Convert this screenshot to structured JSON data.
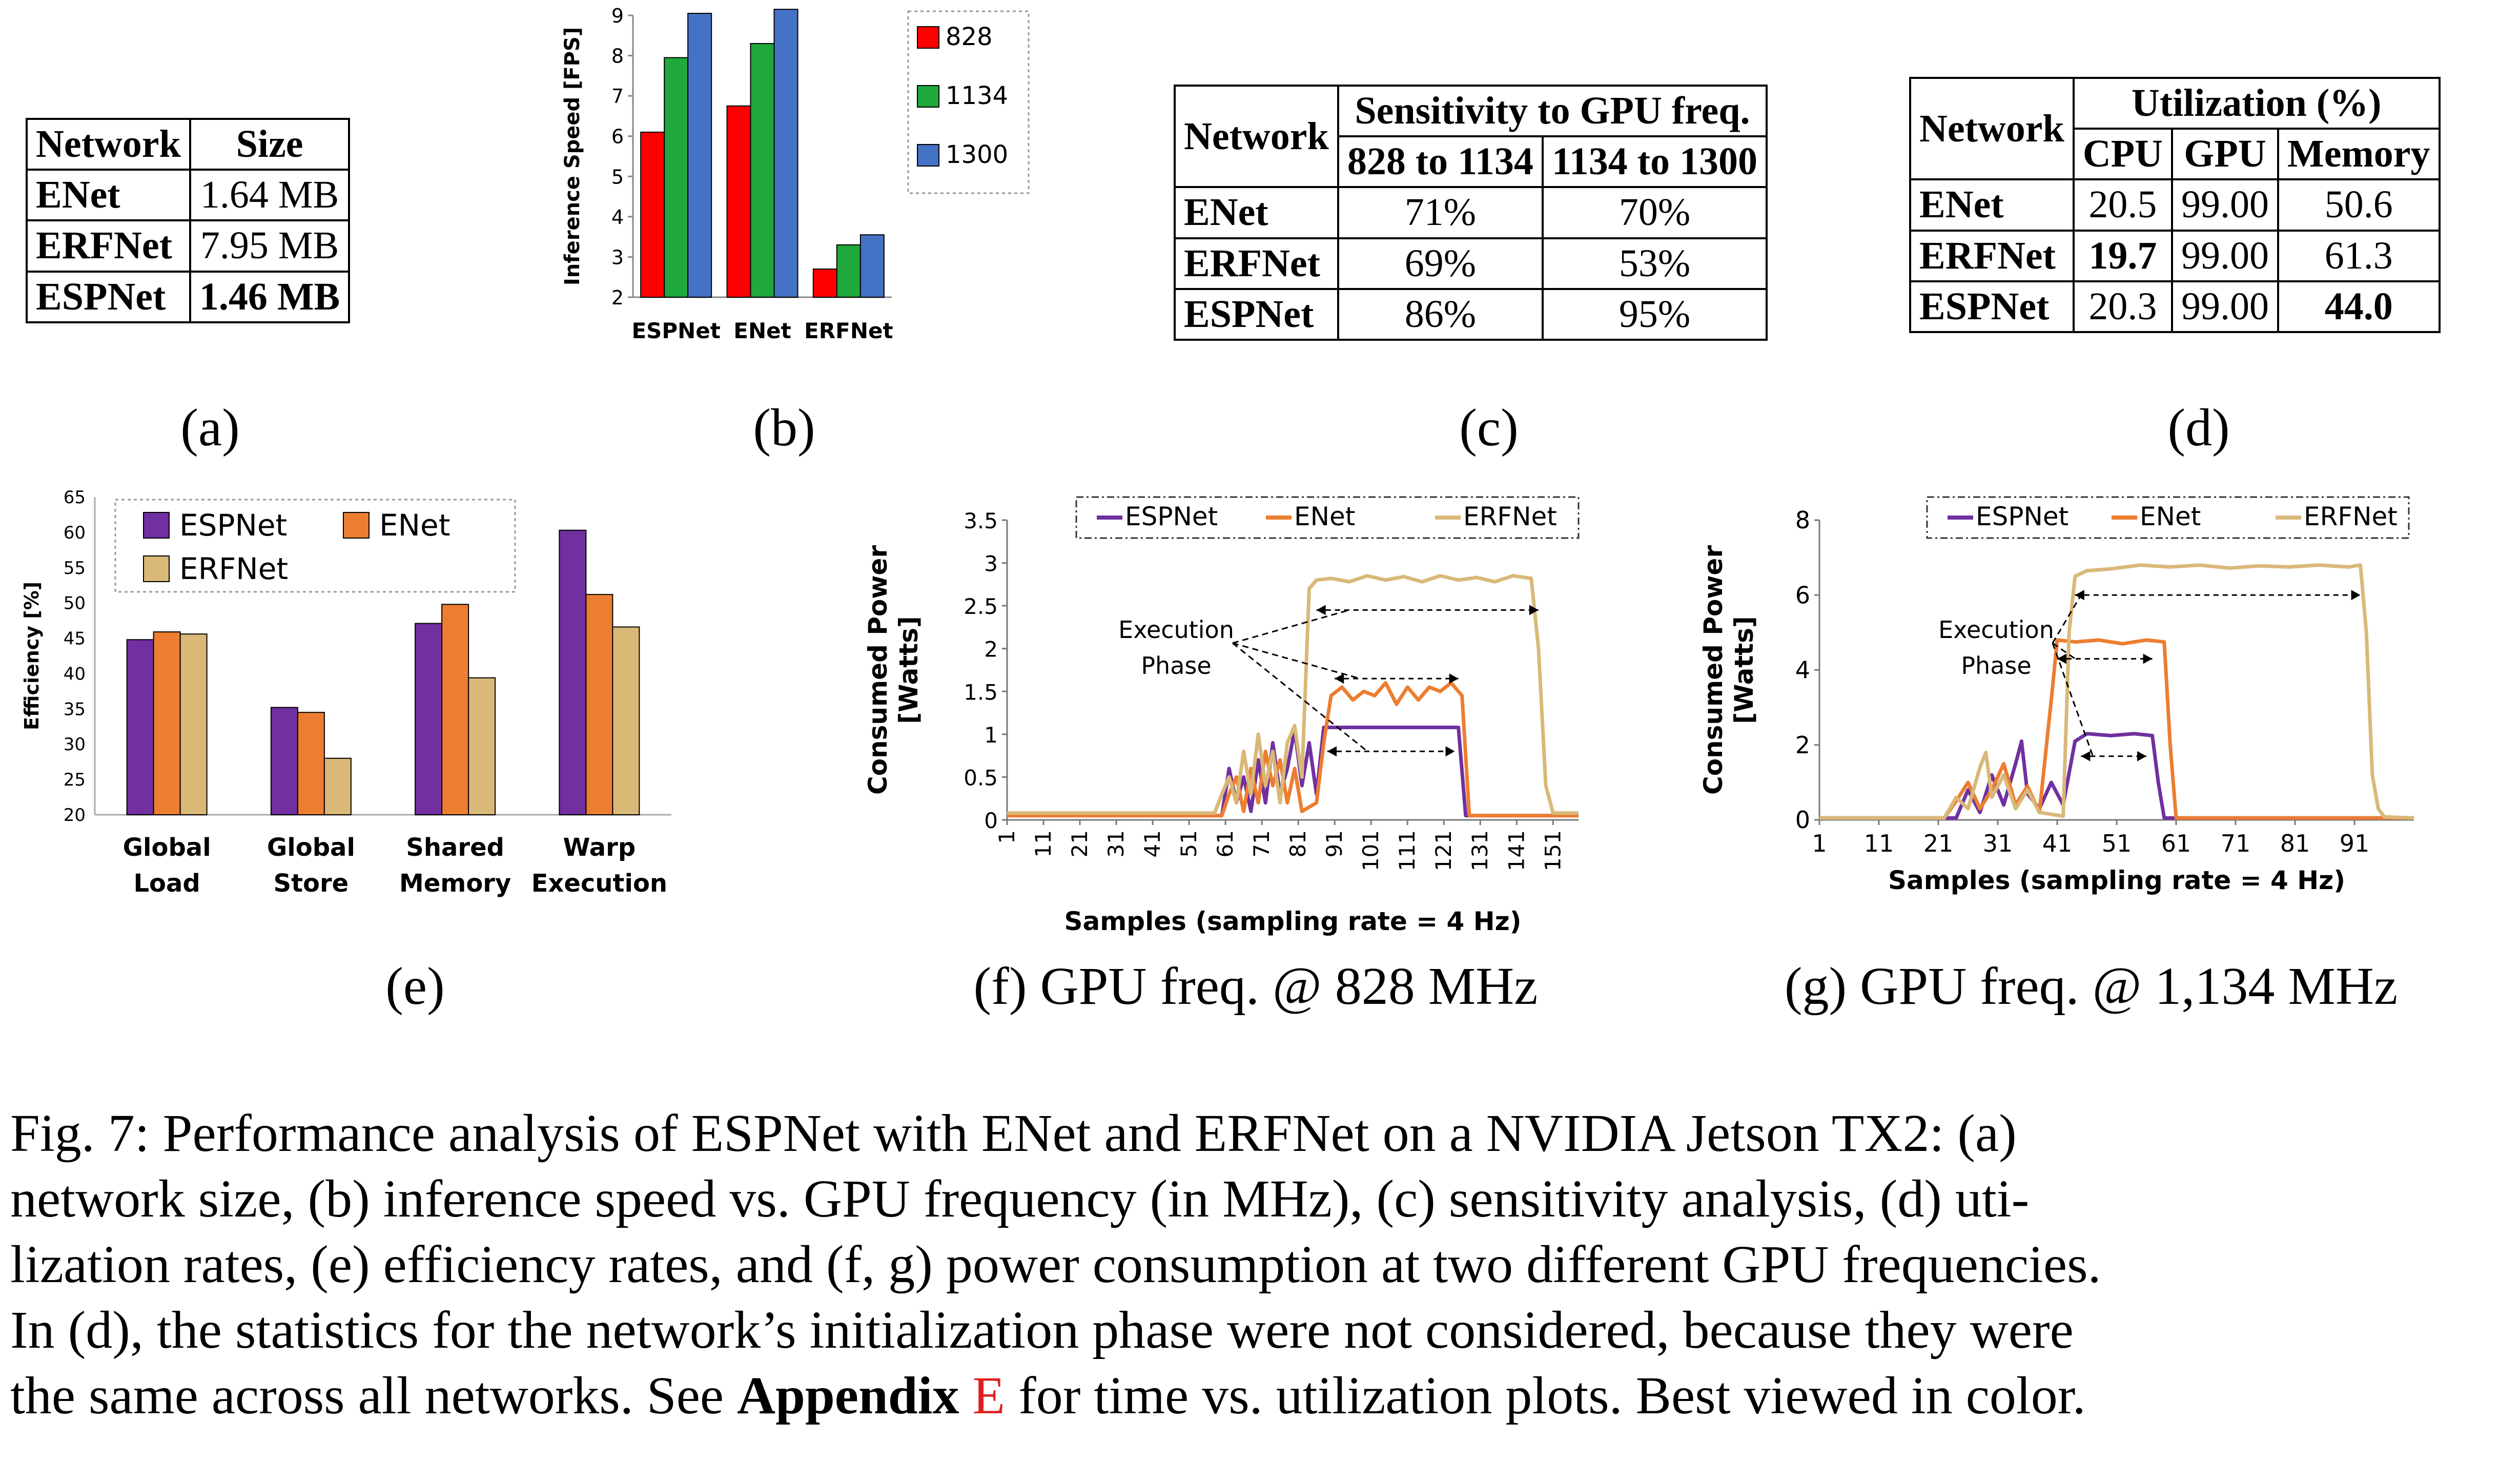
{
  "table_a": {
    "headers": [
      "Network",
      "Size"
    ],
    "rows": [
      [
        "ENet",
        "1.64 MB"
      ],
      [
        "ERFNet",
        "7.95 MB"
      ],
      [
        "ESPNet",
        "1.46 MB"
      ]
    ]
  },
  "table_c": {
    "h_network": "Network",
    "h_group": "Sensitivity to GPU freq.",
    "h_sub1": "828 to 1134",
    "h_sub2": "1134 to 1300",
    "rows": [
      [
        "ENet",
        "71%",
        "70%"
      ],
      [
        "ERFNet",
        "69%",
        "53%"
      ],
      [
        "ESPNet",
        "86%",
        "95%"
      ]
    ]
  },
  "table_d": {
    "h_network": "Network",
    "h_group": "Utilization (%)",
    "h_cpu": "CPU",
    "h_gpu": "GPU",
    "h_mem": "Memory",
    "rows": [
      [
        "ENet",
        "20.5",
        "99.00",
        "50.6"
      ],
      [
        "ERFNet",
        "19.7",
        "99.00",
        "61.3"
      ],
      [
        "ESPNet",
        "20.3",
        "99.00",
        "44.0"
      ]
    ]
  },
  "labels": {
    "a": "(a)",
    "b": "(b)",
    "c": "(c)",
    "d": "(d)",
    "e": "(e)",
    "f": "(f) GPU freq. @ 828 MHz",
    "g": "(g) GPU freq. @ 1,134 MHz"
  },
  "caption": {
    "line1": "Fig. 7: Performance analysis of ESPNet with ENet and ERFNet on a NVIDIA Jetson TX2: (a)",
    "line2": "network size, (b) inference speed vs. GPU frequency (in MHz), (c) sensitivity analysis, (d) uti-",
    "line3": "lization rates, (e) efficiency rates, and (f, g) power consumption at two different GPU frequencies.",
    "line4": "In (d), the statistics for the network’s initialization phase were not considered, because they were",
    "line5_pre": "the same across all networks. See ",
    "line5_bold": "Appendix",
    "line5_ref": "E",
    "line5_post": " for time vs. utilization plots. Best viewed in color."
  },
  "colors": {
    "espnet": "#7030a0",
    "enet": "#ed7d31",
    "erfnet": "#d9b878",
    "f828": "#ff0000",
    "f1134": "#1fa83c",
    "f1300": "#4472c4"
  },
  "chart_data": [
    {
      "id": "b",
      "type": "bar",
      "ylabel": "Inference Speed [FPS]",
      "ylim": [
        2,
        9
      ],
      "yticks": [
        "2",
        "3",
        "4",
        "5",
        "6",
        "7",
        "8",
        "9"
      ],
      "categories": [
        "ESPNet",
        "ENet",
        "ERFNet"
      ],
      "series": [
        {
          "name": "828",
          "values": [
            6.1,
            6.75,
            2.7
          ],
          "color": "#ff0000"
        },
        {
          "name": "1134",
          "values": [
            7.95,
            8.3,
            3.3
          ],
          "color": "#1fa83c"
        },
        {
          "name": "1300",
          "values": [
            9.05,
            9.15,
            3.55
          ],
          "color": "#4472c4"
        }
      ],
      "legend": "right"
    },
    {
      "id": "e",
      "type": "bar",
      "ylabel": "Efficiency [%]",
      "ylim": [
        20,
        65
      ],
      "yticks": [
        "20",
        "25",
        "30",
        "35",
        "40",
        "45",
        "50",
        "55",
        "60",
        "65"
      ],
      "categories": [
        [
          "Global",
          "Load"
        ],
        [
          "Global",
          "Store"
        ],
        [
          "Shared",
          "Memory"
        ],
        [
          "Warp",
          "Execution"
        ]
      ],
      "series": [
        {
          "name": "ESPNet",
          "values": [
            44.8,
            35.2,
            47.1,
            60.3
          ],
          "color": "#7030a0"
        },
        {
          "name": "ENet",
          "values": [
            45.9,
            34.5,
            49.8,
            51.2
          ],
          "color": "#ed7d31"
        },
        {
          "name": "ERFNet",
          "values": [
            45.6,
            28.0,
            39.4,
            46.6
          ],
          "color": "#d9b878"
        }
      ],
      "legend": "top"
    },
    {
      "id": "f",
      "type": "line",
      "xlabel": "Samples (sampling rate = 4 Hz)",
      "ylabel": "Consumed Power [Watts]",
      "ylim": [
        0,
        3.5
      ],
      "xlim": [
        1,
        158
      ],
      "yticks": [
        "0",
        "0.5",
        "1",
        "1.5",
        "2",
        "2.5",
        "3",
        "3.5"
      ],
      "xticks": [
        "1",
        "11",
        "21",
        "31",
        "41",
        "51",
        "61",
        "71",
        "81",
        "91",
        "101",
        "111",
        "121",
        "131",
        "141",
        "151"
      ],
      "annotation": [
        "Execution",
        "Phase"
      ],
      "series": [
        {
          "name": "ESPNet",
          "color": "#7030a0",
          "points": [
            [
              1,
              0.05
            ],
            [
              60,
              0.05
            ],
            [
              62,
              0.6
            ],
            [
              64,
              0.2
            ],
            [
              66,
              0.5
            ],
            [
              68,
              0.1
            ],
            [
              70,
              0.7
            ],
            [
              72,
              0.2
            ],
            [
              74,
              0.9
            ],
            [
              76,
              0.3
            ],
            [
              78,
              0.6
            ],
            [
              80,
              1.05
            ],
            [
              82,
              0.4
            ],
            [
              84,
              0.9
            ],
            [
              86,
              0.3
            ],
            [
              88,
              1.08
            ],
            [
              125,
              1.08
            ],
            [
              127,
              0.05
            ],
            [
              158,
              0.05
            ]
          ]
        },
        {
          "name": "ENet",
          "color": "#ed7d31",
          "points": [
            [
              1,
              0.05
            ],
            [
              60,
              0.05
            ],
            [
              62,
              0.3
            ],
            [
              64,
              0.5
            ],
            [
              66,
              0.1
            ],
            [
              68,
              0.6
            ],
            [
              70,
              0.2
            ],
            [
              72,
              0.8
            ],
            [
              74,
              0.4
            ],
            [
              76,
              0.7
            ],
            [
              78,
              0.2
            ],
            [
              80,
              0.6
            ],
            [
              82,
              0.1
            ],
            [
              86,
              0.2
            ],
            [
              88,
              0.9
            ],
            [
              90,
              1.45
            ],
            [
              93,
              1.55
            ],
            [
              96,
              1.4
            ],
            [
              99,
              1.5
            ],
            [
              102,
              1.45
            ],
            [
              105,
              1.6
            ],
            [
              108,
              1.35
            ],
            [
              111,
              1.55
            ],
            [
              114,
              1.4
            ],
            [
              117,
              1.55
            ],
            [
              120,
              1.5
            ],
            [
              123,
              1.6
            ],
            [
              126,
              1.45
            ],
            [
              128,
              0.05
            ],
            [
              158,
              0.05
            ]
          ]
        },
        {
          "name": "ERFNet",
          "color": "#d9b878",
          "points": [
            [
              1,
              0.08
            ],
            [
              58,
              0.08
            ],
            [
              60,
              0.3
            ],
            [
              62,
              0.5
            ],
            [
              64,
              0.2
            ],
            [
              66,
              0.8
            ],
            [
              68,
              0.3
            ],
            [
              70,
              1.0
            ],
            [
              72,
              0.4
            ],
            [
              74,
              0.8
            ],
            [
              76,
              0.2
            ],
            [
              78,
              0.9
            ],
            [
              80,
              1.1
            ],
            [
              82,
              0.5
            ],
            [
              84,
              2.7
            ],
            [
              86,
              2.8
            ],
            [
              90,
              2.82
            ],
            [
              95,
              2.78
            ],
            [
              100,
              2.85
            ],
            [
              105,
              2.8
            ],
            [
              110,
              2.84
            ],
            [
              115,
              2.78
            ],
            [
              120,
              2.85
            ],
            [
              125,
              2.8
            ],
            [
              130,
              2.83
            ],
            [
              135,
              2.78
            ],
            [
              140,
              2.85
            ],
            [
              145,
              2.82
            ],
            [
              147,
              2.0
            ],
            [
              149,
              0.4
            ],
            [
              151,
              0.08
            ],
            [
              158,
              0.08
            ]
          ]
        }
      ],
      "legend": "top"
    },
    {
      "id": "g",
      "type": "line",
      "xlabel": "Samples (sampling rate = 4 Hz)",
      "ylabel": "Consumed Power [Watts]",
      "ylim": [
        0,
        8
      ],
      "xlim": [
        1,
        101
      ],
      "yticks": [
        "0",
        "2",
        "4",
        "6",
        "8"
      ],
      "xticks": [
        "1",
        "11",
        "21",
        "31",
        "41",
        "51",
        "61",
        "71",
        "81",
        "91"
      ],
      "annotation": [
        "Execution",
        "Phase"
      ],
      "series": [
        {
          "name": "ESPNet",
          "color": "#7030a0",
          "points": [
            [
              1,
              0.05
            ],
            [
              24,
              0.05
            ],
            [
              26,
              0.8
            ],
            [
              28,
              0.2
            ],
            [
              30,
              1.2
            ],
            [
              32,
              0.4
            ],
            [
              34,
              1.5
            ],
            [
              35,
              2.1
            ],
            [
              36,
              0.7
            ],
            [
              38,
              0.3
            ],
            [
              40,
              1.0
            ],
            [
              42,
              0.4
            ],
            [
              44,
              2.1
            ],
            [
              46,
              2.3
            ],
            [
              50,
              2.25
            ],
            [
              54,
              2.3
            ],
            [
              57,
              2.25
            ],
            [
              58,
              1.0
            ],
            [
              59,
              0.05
            ],
            [
              101,
              0.05
            ]
          ]
        },
        {
          "name": "ENet",
          "color": "#ed7d31",
          "points": [
            [
              1,
              0.05
            ],
            [
              22,
              0.05
            ],
            [
              24,
              0.5
            ],
            [
              26,
              1.0
            ],
            [
              28,
              0.3
            ],
            [
              30,
              0.8
            ],
            [
              32,
              1.5
            ],
            [
              34,
              0.4
            ],
            [
              36,
              0.9
            ],
            [
              38,
              0.2
            ],
            [
              40,
              3.2
            ],
            [
              41,
              4.8
            ],
            [
              44,
              4.75
            ],
            [
              48,
              4.8
            ],
            [
              52,
              4.7
            ],
            [
              56,
              4.8
            ],
            [
              59,
              4.75
            ],
            [
              60,
              2.0
            ],
            [
              61,
              0.05
            ],
            [
              101,
              0.05
            ]
          ]
        },
        {
          "name": "ERFNet",
          "color": "#d9b878",
          "points": [
            [
              1,
              0.05
            ],
            [
              22,
              0.05
            ],
            [
              24,
              0.6
            ],
            [
              26,
              0.3
            ],
            [
              28,
              1.4
            ],
            [
              29,
              1.8
            ],
            [
              30,
              0.6
            ],
            [
              32,
              1.2
            ],
            [
              34,
              0.3
            ],
            [
              36,
              0.8
            ],
            [
              38,
              0.2
            ],
            [
              42,
              0.1
            ],
            [
              43,
              5.0
            ],
            [
              44,
              6.5
            ],
            [
              46,
              6.65
            ],
            [
              50,
              6.7
            ],
            [
              55,
              6.8
            ],
            [
              60,
              6.75
            ],
            [
              65,
              6.8
            ],
            [
              70,
              6.72
            ],
            [
              75,
              6.78
            ],
            [
              80,
              6.75
            ],
            [
              85,
              6.8
            ],
            [
              90,
              6.75
            ],
            [
              92,
              6.8
            ],
            [
              93,
              5.0
            ],
            [
              94,
              1.2
            ],
            [
              95,
              0.3
            ],
            [
              96,
              0.08
            ],
            [
              101,
              0.05
            ]
          ]
        }
      ],
      "legend": "top"
    }
  ]
}
